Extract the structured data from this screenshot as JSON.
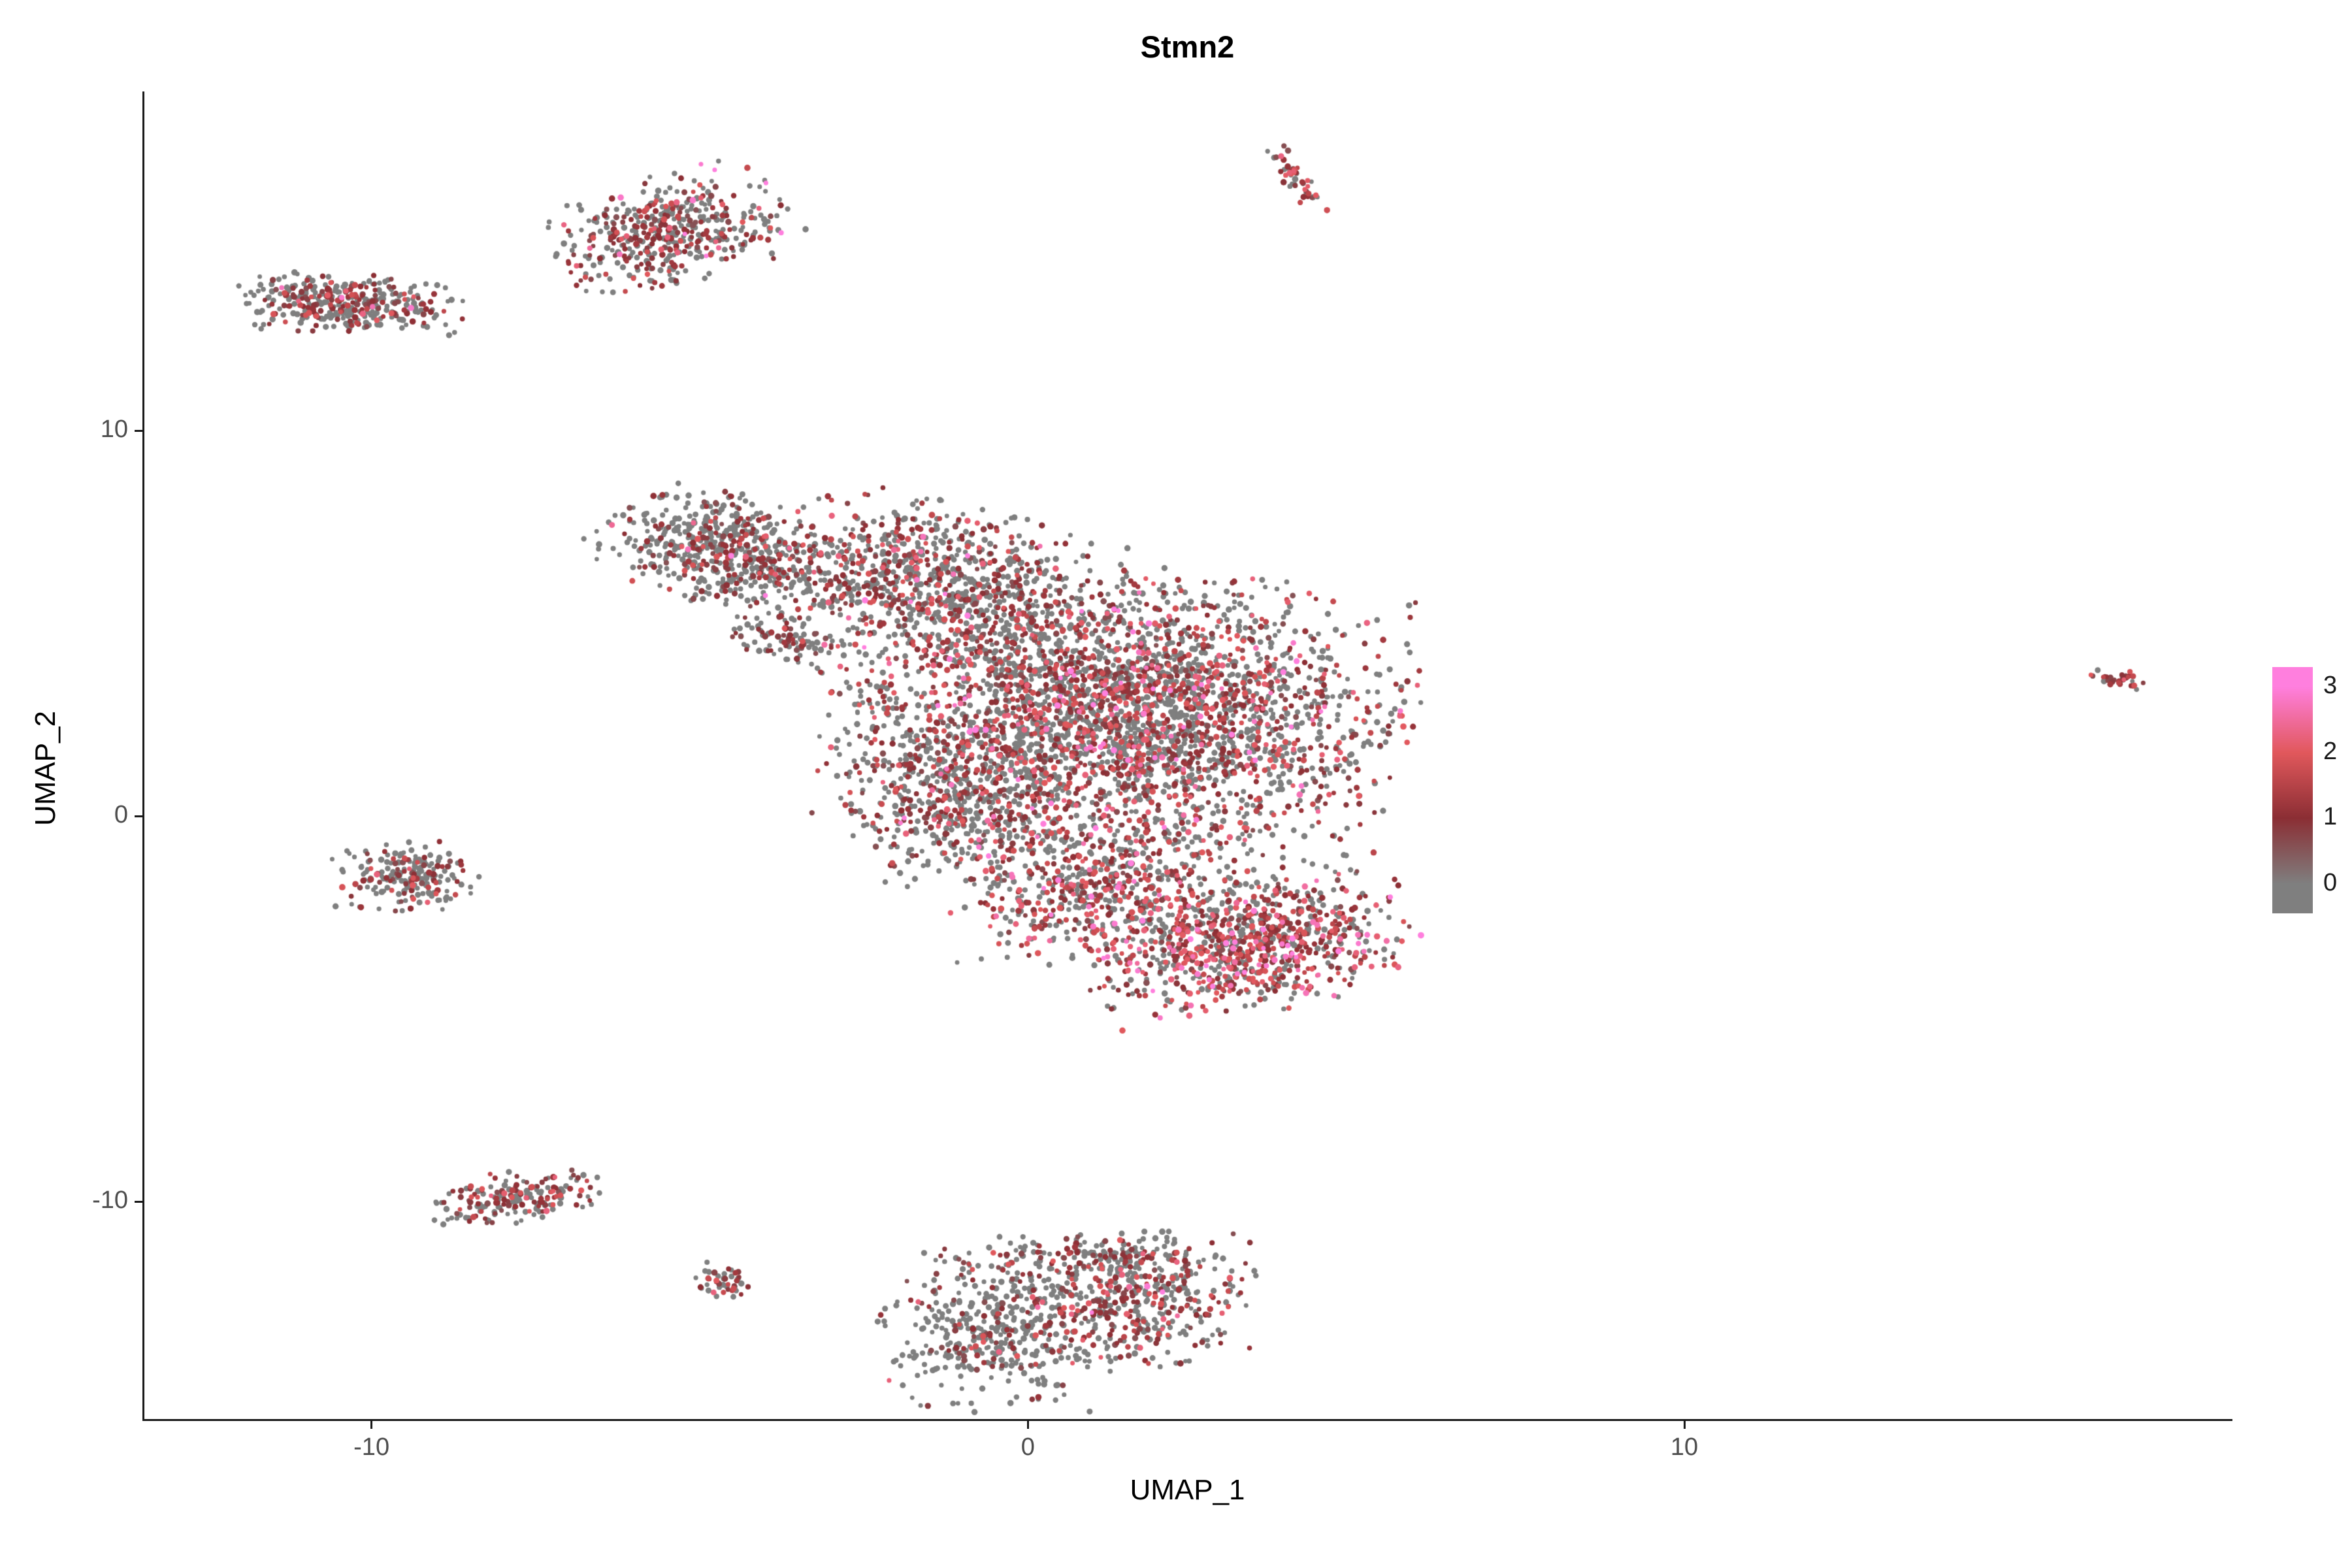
{
  "title": "Stmn2",
  "axes": {
    "x": {
      "label": "UMAP_1",
      "ticks": [
        {
          "label": "-10",
          "value": -10
        },
        {
          "label": "0",
          "value": 0
        },
        {
          "label": "10",
          "value": 10
        }
      ]
    },
    "y": {
      "label": "UMAP_2",
      "ticks": [
        {
          "label": "10",
          "value": 10
        },
        {
          "label": "0",
          "value": 0
        },
        {
          "label": "-10",
          "value": -10
        }
      ]
    }
  },
  "legend": {
    "bar_min": -0.45,
    "bar_max": 3.3,
    "ticks": [
      {
        "label": "3",
        "value": 3
      },
      {
        "label": "2",
        "value": 2
      },
      {
        "label": "1",
        "value": 1
      },
      {
        "label": "0",
        "value": 0
      }
    ]
  },
  "colors": {
    "stops": [
      {
        "value": 0,
        "color": "#7F7F7F"
      },
      {
        "value": 1,
        "color": "#8B2E34"
      },
      {
        "value": 2,
        "color": "#E1585C"
      },
      {
        "value": 3,
        "color": "#FF7FDE"
      }
    ],
    "axis_line": "#1A1A1A",
    "tick_text": "#4D4D4D",
    "title_text": "#000000"
  },
  "chart_data": {
    "type": "scatter",
    "title": "Stmn2",
    "xlabel": "UMAP_1",
    "ylabel": "UMAP_2",
    "xlim": [
      -13.46,
      18.32
    ],
    "ylim": [
      -15.64,
      18.8
    ],
    "expression_range": [
      0,
      3
    ],
    "point_radius": [
      3.4,
      4.9
    ],
    "legend_values": [
      0,
      1,
      2,
      3
    ],
    "clusters": [
      {
        "name": "upper-left-band",
        "cx": -10.35,
        "cy": 13.3,
        "sx": 0.8,
        "sy": 0.33,
        "rot": -0.06,
        "n": 380,
        "mix": {
          "zero": 0.6,
          "low": 0.31,
          "mid": 0.08,
          "high": 0.01
        }
      },
      {
        "name": "upper-mid-blob",
        "cx": -5.45,
        "cy": 15.15,
        "sx": 0.85,
        "sy": 0.62,
        "rot": 0.5,
        "n": 470,
        "mix": {
          "zero": 0.55,
          "low": 0.32,
          "mid": 0.11,
          "high": 0.02
        }
      },
      {
        "name": "top-streak",
        "cx": 4.12,
        "cy": 16.5,
        "sx": 0.1,
        "sy": 0.42,
        "rot": 0.38,
        "n": 48,
        "mix": {
          "zero": 0.3,
          "low": 0.4,
          "mid": 0.3,
          "high": 0.0
        }
      },
      {
        "name": "main-nw-arm",
        "cx": -4.55,
        "cy": 6.85,
        "sx": 0.9,
        "sy": 0.62,
        "rot": -0.55,
        "n": 560,
        "mix": {
          "zero": 0.7,
          "low": 0.24,
          "mid": 0.05,
          "high": 0.01
        }
      },
      {
        "name": "main-nw-spur",
        "cx": -3.7,
        "cy": 4.55,
        "sx": 0.42,
        "sy": 0.3,
        "rot": -0.5,
        "n": 90,
        "mix": {
          "zero": 0.58,
          "low": 0.32,
          "mid": 0.1,
          "high": 0.0
        }
      },
      {
        "name": "main-upper-band",
        "cx": -1.5,
        "cy": 6.0,
        "sx": 1.25,
        "sy": 0.95,
        "rot": -0.35,
        "n": 850,
        "mix": {
          "zero": 0.58,
          "low": 0.28,
          "mid": 0.12,
          "high": 0.02
        }
      },
      {
        "name": "main-core",
        "cx": 1.45,
        "cy": 2.7,
        "sx": 1.95,
        "sy": 1.65,
        "rot": -0.18,
        "n": 3100,
        "mix": {
          "zero": 0.55,
          "low": 0.26,
          "mid": 0.16,
          "high": 0.03
        }
      },
      {
        "name": "main-left-tail",
        "cx": -1.15,
        "cy": 0.5,
        "sx": 0.75,
        "sy": 1.05,
        "rot": 0,
        "n": 430,
        "mix": {
          "zero": 0.6,
          "low": 0.27,
          "mid": 0.11,
          "high": 0.02
        }
      },
      {
        "name": "main-lower",
        "cx": 1.1,
        "cy": -1.7,
        "sx": 1.05,
        "sy": 0.95,
        "rot": 0,
        "n": 620,
        "mix": {
          "zero": 0.5,
          "low": 0.27,
          "mid": 0.19,
          "high": 0.04
        }
      },
      {
        "name": "main-se-lobe",
        "cx": 3.35,
        "cy": -3.25,
        "sx": 1.15,
        "sy": 0.8,
        "rot": 0.25,
        "n": 880,
        "mix": {
          "zero": 0.34,
          "low": 0.3,
          "mid": 0.29,
          "high": 0.07
        }
      },
      {
        "name": "left-small",
        "cx": -9.45,
        "cy": -1.55,
        "sx": 0.5,
        "sy": 0.4,
        "rot": 0,
        "n": 210,
        "mix": {
          "zero": 0.62,
          "low": 0.3,
          "mid": 0.08,
          "high": 0.0
        }
      },
      {
        "name": "lower-left",
        "cx": -7.8,
        "cy": -9.9,
        "sx": 0.6,
        "sy": 0.3,
        "rot": 0.18,
        "n": 185,
        "mix": {
          "zero": 0.54,
          "low": 0.33,
          "mid": 0.13,
          "high": 0.0
        }
      },
      {
        "name": "lower-small-spur",
        "cx": -4.68,
        "cy": -12.05,
        "sx": 0.2,
        "sy": 0.24,
        "rot": 0,
        "n": 45,
        "mix": {
          "zero": 0.42,
          "low": 0.42,
          "mid": 0.16,
          "high": 0.0
        }
      },
      {
        "name": "bottom-left-ring",
        "cx": -0.45,
        "cy": -13.4,
        "sx": 0.8,
        "sy": 0.9,
        "rot": 0,
        "n": 420,
        "mix": {
          "zero": 0.76,
          "low": 0.19,
          "mid": 0.05,
          "high": 0.0
        }
      },
      {
        "name": "bottom-right-lobe",
        "cx": 1.65,
        "cy": -12.5,
        "sx": 0.8,
        "sy": 0.78,
        "rot": 0,
        "n": 430,
        "mix": {
          "zero": 0.53,
          "low": 0.28,
          "mid": 0.16,
          "high": 0.03
        }
      },
      {
        "name": "bottom-top-arc",
        "cx": 0.85,
        "cy": -11.4,
        "sx": 0.95,
        "sy": 0.28,
        "rot": 0.05,
        "n": 140,
        "mix": {
          "zero": 0.58,
          "low": 0.28,
          "mid": 0.14,
          "high": 0.0
        }
      },
      {
        "name": "far-right-dot",
        "cx": 16.62,
        "cy": 3.55,
        "sx": 0.22,
        "sy": 0.14,
        "rot": -0.35,
        "n": 34,
        "mix": {
          "zero": 0.3,
          "low": 0.38,
          "mid": 0.32,
          "high": 0.0
        }
      }
    ]
  }
}
